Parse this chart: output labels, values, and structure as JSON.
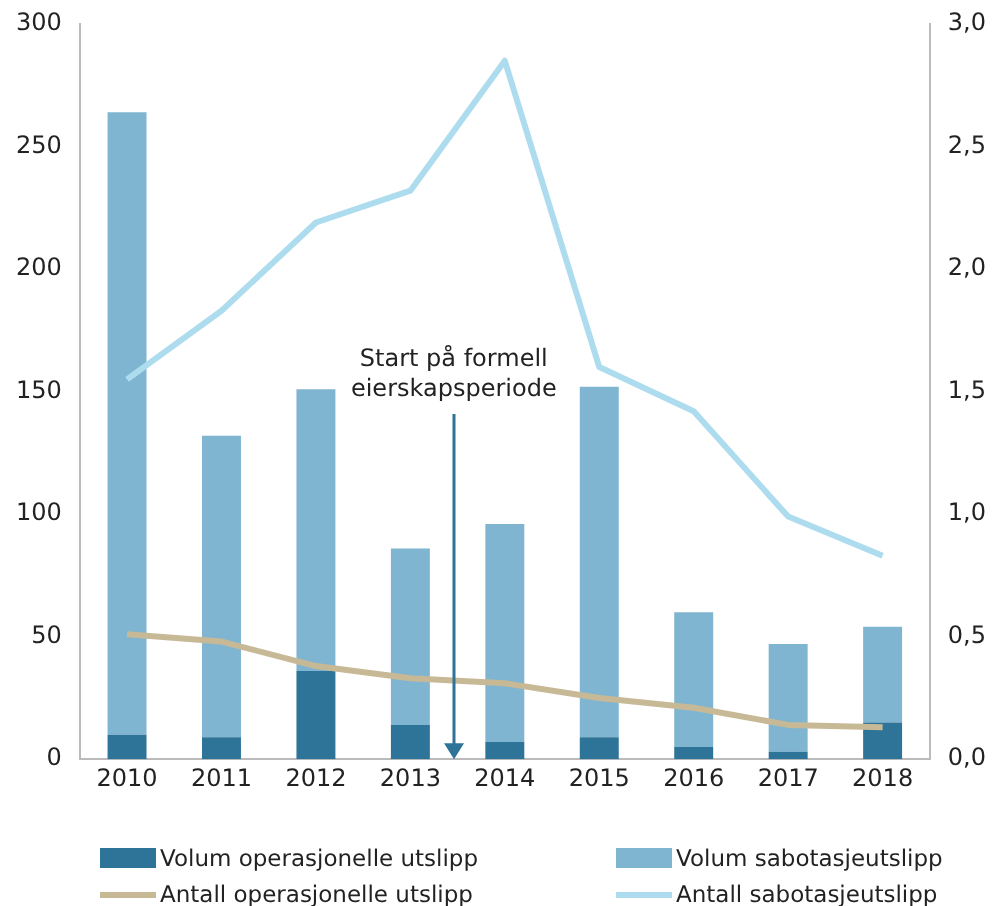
{
  "chart_data": {
    "type": "bar",
    "stacked": true,
    "categories": [
      "2010",
      "2011",
      "2012",
      "2013",
      "2014",
      "2015",
      "2016",
      "2017",
      "2018"
    ],
    "series": [
      {
        "name": "Volum operasjonelle utslipp",
        "color": "#2e7398",
        "values": [
          10,
          9,
          36,
          14,
          7,
          9,
          5,
          3,
          15
        ]
      },
      {
        "name": "Volum sabotasjeutslipp",
        "color": "#7fb5d0",
        "values": [
          254,
          123,
          115,
          72,
          89,
          143,
          55,
          44,
          39
        ]
      },
      {
        "name": "Antall operasjonelle utslipp",
        "type": "line",
        "axis": "y2",
        "color": "#c8b996",
        "values": [
          0.51,
          0.48,
          0.38,
          0.33,
          0.31,
          0.25,
          0.21,
          0.14,
          0.13
        ]
      },
      {
        "name": "Antall sabotasjeutslipp",
        "type": "line",
        "axis": "y2",
        "color": "#addcef",
        "values": [
          1.55,
          1.83,
          2.19,
          2.32,
          2.85,
          1.6,
          1.42,
          0.99,
          0.83
        ]
      }
    ],
    "ylim": [
      0,
      300
    ],
    "yticks": [
      0,
      50,
      100,
      150,
      200,
      250,
      300
    ],
    "y2lim": [
      0,
      3
    ],
    "y2ticks": [
      {
        "value": 0,
        "label": "0,0"
      },
      {
        "value": 0.5,
        "label": "0,5"
      },
      {
        "value": 1,
        "label": "1,0"
      },
      {
        "value": 1.5,
        "label": "1,5"
      },
      {
        "value": 2,
        "label": "2,0"
      },
      {
        "value": 2.5,
        "label": "2,5"
      },
      {
        "value": 3,
        "label": "3,0"
      }
    ],
    "grid": false,
    "legend": "bottom",
    "marker": "none",
    "line_style": "solid",
    "annotations": [
      "Start på formell eierskapsperiode"
    ]
  }
}
